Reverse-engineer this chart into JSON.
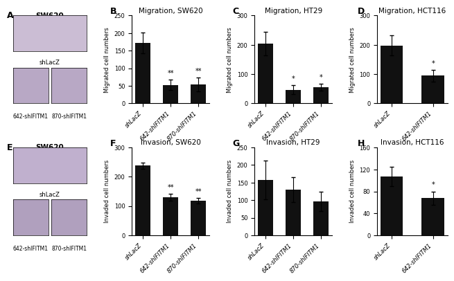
{
  "panel_B": {
    "title": "Migration, SW620",
    "ylabel": "Migrated cell numbers",
    "categories": [
      "shLacZ",
      "642-shIFITM1",
      "870-shIFITM1"
    ],
    "values": [
      172,
      53,
      54
    ],
    "errors": [
      30,
      15,
      20
    ],
    "ylim": [
      0,
      250
    ],
    "yticks": [
      0,
      50,
      100,
      150,
      200,
      250
    ],
    "significance": [
      "",
      "**",
      "**"
    ]
  },
  "panel_C": {
    "title": "Migration, HT29",
    "ylabel": "Migrated cell numbers",
    "categories": [
      "shLacZ",
      "642-shIFITM1",
      "870-shIFITM1"
    ],
    "values": [
      205,
      47,
      55
    ],
    "errors": [
      40,
      15,
      12
    ],
    "ylim": [
      0,
      300
    ],
    "yticks": [
      0,
      100,
      200,
      300
    ],
    "significance": [
      "",
      "*",
      "*"
    ]
  },
  "panel_D": {
    "title": "Migration, HCT116",
    "ylabel": "Migrated cell numbers",
    "categories": [
      "shLacZ",
      "642-shIFITM1"
    ],
    "values": [
      198,
      95
    ],
    "errors": [
      35,
      20
    ],
    "ylim": [
      0,
      300
    ],
    "yticks": [
      0,
      100,
      200,
      300
    ],
    "significance": [
      "",
      "*"
    ]
  },
  "panel_F": {
    "title": "Invasion, SW620",
    "ylabel": "Invaded cell numbers",
    "categories": [
      "shLacZ",
      "642-shIFITM1",
      "870-shIFITM1"
    ],
    "values": [
      238,
      130,
      118
    ],
    "errors": [
      10,
      12,
      10
    ],
    "ylim": [
      0,
      300
    ],
    "yticks": [
      0,
      100,
      200,
      300
    ],
    "significance": [
      "",
      "**",
      "**"
    ]
  },
  "panel_G": {
    "title": "Invasion, HT29",
    "ylabel": "Invaded cell numbers",
    "categories": [
      "shLacZ",
      "642-shIFITM1",
      "870-shIFITM1"
    ],
    "values": [
      158,
      130,
      97
    ],
    "errors": [
      55,
      35,
      28
    ],
    "ylim": [
      0,
      250
    ],
    "yticks": [
      0,
      50,
      100,
      150,
      200,
      250
    ],
    "significance": [
      "",
      "",
      ""
    ]
  },
  "panel_H": {
    "title": "Invasion, HCT116",
    "ylabel": "Invaded cell numbers",
    "categories": [
      "shLacZ",
      "642-shIFITM1"
    ],
    "values": [
      107,
      68
    ],
    "errors": [
      18,
      12
    ],
    "ylim": [
      0,
      160
    ],
    "yticks": [
      0,
      40,
      80,
      120,
      160
    ],
    "significance": [
      "",
      "*"
    ]
  },
  "bar_color": "#111111",
  "bar_width": 0.55,
  "label_fontsize": 6.0,
  "title_fontsize": 7.5,
  "tick_fontsize": 6,
  "sig_fontsize": 7,
  "panel_label_fontsize": 9,
  "img_color_top_A": "#cbbdd4",
  "img_color_bot_A": "#b8a8c5",
  "img_color_top_E": "#c0b0ce",
  "img_color_bot_E": "#b0a0be"
}
